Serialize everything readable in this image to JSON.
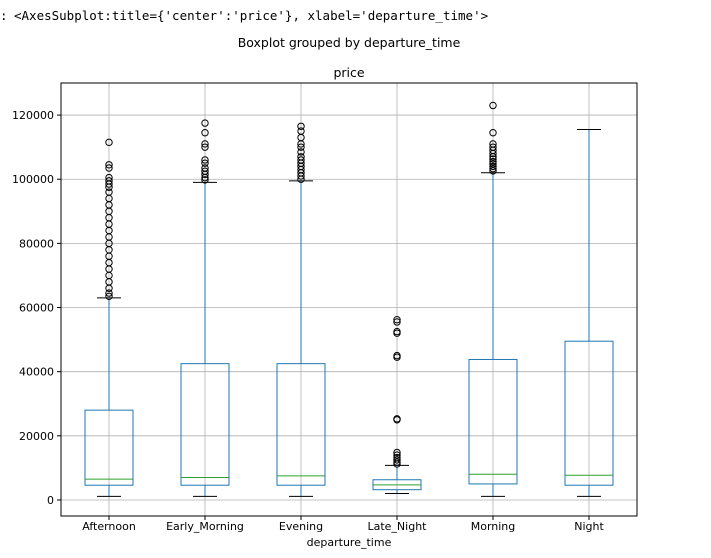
{
  "output": {
    "prompt_mark": ":",
    "repr_text": "<AxesSubplot:title={'center':'price'}, xlabel='departure_time'>"
  },
  "chart_data": {
    "type": "boxplot",
    "suptitle": "Boxplot grouped by departure_time",
    "title": "price",
    "xlabel": "departure_time",
    "ylabel": "",
    "ylim": [
      -5000,
      130000
    ],
    "yticks": [
      0,
      20000,
      40000,
      60000,
      80000,
      100000,
      120000
    ],
    "grid": true,
    "colors": {
      "box": "#1f77b4",
      "median": "#2ca02c",
      "whisker": "#1f77b4",
      "cap": "#000000",
      "flier": "#000000",
      "grid": "#b0b0b0"
    },
    "categories": [
      "Afternoon",
      "Early_Morning",
      "Evening",
      "Late_Night",
      "Morning",
      "Night"
    ],
    "boxes": [
      {
        "label": "Afternoon",
        "whislo": 1100,
        "q1": 4600,
        "med": 6500,
        "q3": 28000,
        "whishi": 63000,
        "fliers": [
          63500,
          64500,
          66000,
          68000,
          70000,
          72000,
          74000,
          76000,
          78000,
          80000,
          82000,
          84000,
          86000,
          88000,
          90000,
          92000,
          94000,
          96000,
          97500,
          98500,
          99500,
          100500,
          103500,
          104500,
          111500
        ]
      },
      {
        "label": "Early_Morning",
        "whislo": 1100,
        "q1": 4600,
        "med": 7000,
        "q3": 42500,
        "whishi": 99000,
        "fliers": [
          99800,
          100500,
          101500,
          102500,
          103500,
          105000,
          106000,
          110000,
          111000,
          114500,
          117500
        ]
      },
      {
        "label": "Evening",
        "whislo": 1100,
        "q1": 4600,
        "med": 7500,
        "q3": 42500,
        "whishi": 99500,
        "fliers": [
          100000,
          101000,
          102000,
          103000,
          104000,
          105000,
          106000,
          107000,
          108500,
          110000,
          111000,
          113000,
          115000,
          116500
        ]
      },
      {
        "label": "Late_Night",
        "whislo": 2000,
        "q1": 3200,
        "med": 4700,
        "q3": 6300,
        "whishi": 10800,
        "fliers": [
          11200,
          11800,
          12500,
          13200,
          14000,
          14800,
          25000,
          25300,
          44500,
          45000,
          52000,
          52500,
          55500,
          56200
        ]
      },
      {
        "label": "Morning",
        "whislo": 1100,
        "q1": 5000,
        "med": 8000,
        "q3": 43800,
        "whishi": 102000,
        "fliers": [
          102600,
          103300,
          104000,
          104800,
          105500,
          106300,
          107000,
          108000,
          109000,
          110000,
          111000,
          114500,
          123000
        ]
      },
      {
        "label": "Night",
        "whislo": 1100,
        "q1": 4600,
        "med": 7700,
        "q3": 49500,
        "whishi": 115500,
        "fliers": []
      }
    ]
  }
}
